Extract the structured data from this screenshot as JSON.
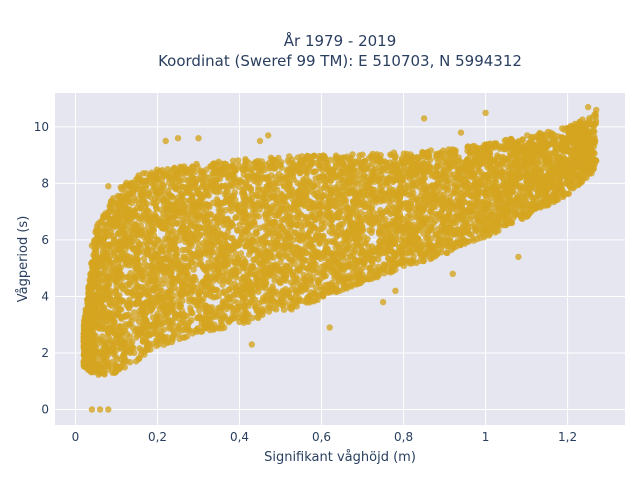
{
  "chart_data": {
    "type": "scatter",
    "title_line1": "År 1979 - 2019",
    "title_line2": "Koordinat (Sweref 99 TM): E 510703, N 5994312",
    "xlabel": "Signifikant våghöjd (m)",
    "ylabel": "Vågperiod (s)",
    "xlim": [
      -0.05,
      1.34
    ],
    "ylim": [
      -0.55,
      11.2
    ],
    "x_ticks": [
      0,
      0.2,
      0.4,
      0.6,
      0.8,
      1,
      1.2
    ],
    "x_tick_labels": [
      "0",
      "0,2",
      "0,4",
      "0,6",
      "0,8",
      "1",
      "1,2"
    ],
    "y_ticks": [
      0,
      2,
      4,
      6,
      8,
      10
    ],
    "y_tick_labels": [
      "0",
      "2",
      "4",
      "6",
      "8",
      "10"
    ],
    "grid": true,
    "marker_color": "#D4A520",
    "plot_bg": "#E5E6F0",
    "envelope": {
      "x": [
        0.02,
        0.05,
        0.1,
        0.15,
        0.2,
        0.3,
        0.4,
        0.5,
        0.6,
        0.7,
        0.8,
        0.9,
        1.0,
        1.1,
        1.2,
        1.27
      ],
      "upper": [
        3.0,
        6.5,
        7.8,
        8.3,
        8.5,
        8.7,
        8.85,
        8.95,
        9.0,
        9.05,
        9.1,
        9.2,
        9.4,
        9.7,
        10.0,
        10.5
      ],
      "lower": [
        1.5,
        1.2,
        1.3,
        1.7,
        2.2,
        2.7,
        3.0,
        3.4,
        3.9,
        4.5,
        5.0,
        5.5,
        6.1,
        6.8,
        7.6,
        8.5
      ]
    },
    "outliers": [
      {
        "x": 0.04,
        "y": 0.0
      },
      {
        "x": 0.06,
        "y": 0.0
      },
      {
        "x": 0.08,
        "y": 0.0
      },
      {
        "x": 1.0,
        "y": 10.5
      },
      {
        "x": 1.25,
        "y": 10.7
      },
      {
        "x": 1.27,
        "y": 10.6
      },
      {
        "x": 0.85,
        "y": 10.3
      },
      {
        "x": 0.94,
        "y": 9.8
      },
      {
        "x": 0.45,
        "y": 9.5
      },
      {
        "x": 0.47,
        "y": 9.7
      },
      {
        "x": 0.3,
        "y": 9.6
      },
      {
        "x": 0.25,
        "y": 9.6
      },
      {
        "x": 0.22,
        "y": 9.5
      },
      {
        "x": 0.08,
        "y": 7.9
      },
      {
        "x": 0.04,
        "y": 5.8
      },
      {
        "x": 0.62,
        "y": 2.9
      },
      {
        "x": 0.75,
        "y": 3.8
      },
      {
        "x": 0.78,
        "y": 4.2
      },
      {
        "x": 0.92,
        "y": 4.8
      },
      {
        "x": 1.08,
        "y": 5.4
      },
      {
        "x": 0.43,
        "y": 2.3
      }
    ]
  }
}
